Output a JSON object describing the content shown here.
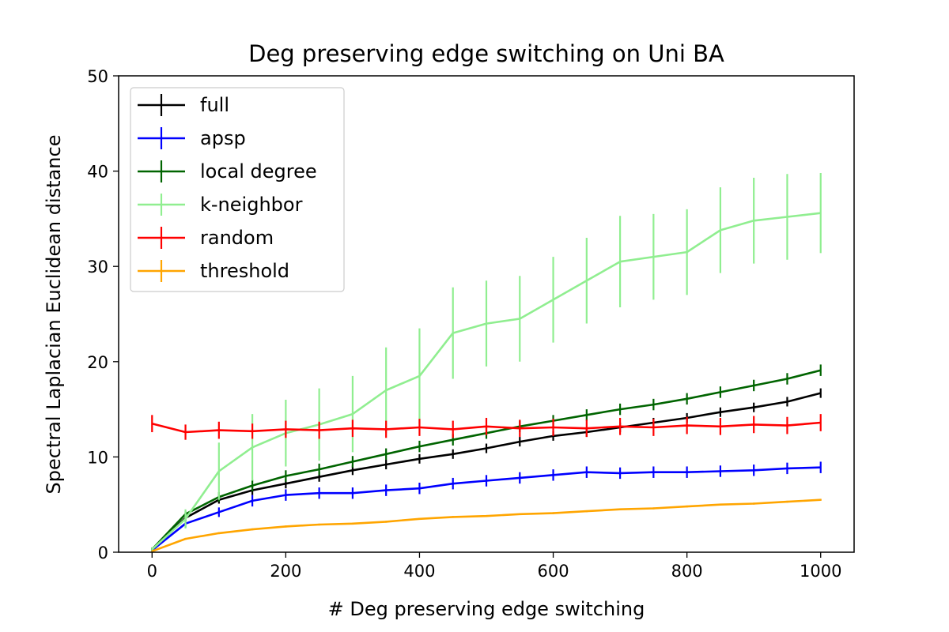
{
  "chart_data": {
    "type": "line",
    "title": "Deg preserving edge switching on Uni BA",
    "xlabel": "# Deg preserving edge switching",
    "ylabel": "Spectral Laplacian Euclidean distance",
    "xlim": [
      -50,
      1050
    ],
    "ylim": [
      0,
      50
    ],
    "xticks": [
      0,
      200,
      400,
      600,
      800,
      1000
    ],
    "yticks": [
      0,
      10,
      20,
      30,
      40,
      50
    ],
    "x": [
      0,
      50,
      100,
      150,
      200,
      250,
      300,
      350,
      400,
      450,
      500,
      550,
      600,
      650,
      700,
      750,
      800,
      850,
      900,
      950,
      1000
    ],
    "legend_position": "upper-left",
    "grid": false,
    "series": [
      {
        "name": "full",
        "color": "#000000",
        "values": [
          0.3,
          3.6,
          5.5,
          6.5,
          7.2,
          7.9,
          8.6,
          9.2,
          9.8,
          10.3,
          10.9,
          11.6,
          12.2,
          12.6,
          13.1,
          13.6,
          14.1,
          14.7,
          15.2,
          15.8,
          16.7
        ],
        "errors": [
          0.2,
          0.3,
          0.4,
          0.5,
          0.5,
          0.5,
          0.5,
          0.5,
          0.5,
          0.5,
          0.5,
          0.5,
          0.5,
          0.5,
          0.5,
          0.5,
          0.5,
          0.5,
          0.5,
          0.5,
          0.5
        ]
      },
      {
        "name": "apsp",
        "color": "#0000ff",
        "values": [
          0.2,
          3.0,
          4.2,
          5.4,
          6.0,
          6.2,
          6.2,
          6.5,
          6.7,
          7.2,
          7.5,
          7.8,
          8.1,
          8.4,
          8.3,
          8.4,
          8.4,
          8.5,
          8.6,
          8.8,
          8.9
        ],
        "errors": [
          0.2,
          0.4,
          0.5,
          0.6,
          0.6,
          0.6,
          0.6,
          0.6,
          0.6,
          0.6,
          0.6,
          0.6,
          0.6,
          0.6,
          0.6,
          0.6,
          0.6,
          0.6,
          0.6,
          0.6,
          0.6
        ]
      },
      {
        "name": "local degree",
        "color": "#006400",
        "values": [
          0.3,
          4.0,
          5.8,
          7.0,
          8.0,
          8.7,
          9.5,
          10.3,
          11.1,
          11.8,
          12.5,
          13.2,
          13.8,
          14.4,
          15.0,
          15.5,
          16.1,
          16.8,
          17.5,
          18.2,
          19.1
        ],
        "errors": [
          0.2,
          0.3,
          0.5,
          0.6,
          0.6,
          0.6,
          0.6,
          0.6,
          0.6,
          0.6,
          0.6,
          0.6,
          0.6,
          0.6,
          0.6,
          0.6,
          0.6,
          0.6,
          0.6,
          0.6,
          0.6
        ]
      },
      {
        "name": "k-neighbor",
        "color": "#90ee90",
        "values": [
          0.3,
          3.5,
          8.5,
          11.0,
          12.5,
          13.4,
          14.5,
          17.0,
          18.5,
          23.0,
          24.0,
          24.5,
          26.5,
          28.5,
          30.5,
          31.0,
          31.5,
          33.8,
          34.8,
          35.2,
          35.6
        ],
        "errors": [
          0.2,
          1.0,
          3.0,
          3.5,
          3.5,
          3.8,
          4.0,
          4.5,
          5.0,
          4.8,
          4.5,
          4.5,
          4.5,
          4.5,
          4.8,
          4.5,
          4.5,
          4.5,
          4.5,
          4.5,
          4.2
        ]
      },
      {
        "name": "random",
        "color": "#ff0000",
        "values": [
          13.5,
          12.6,
          12.8,
          12.7,
          12.9,
          12.8,
          13.0,
          12.9,
          13.1,
          12.9,
          13.2,
          13.0,
          13.1,
          13.0,
          13.2,
          13.1,
          13.3,
          13.2,
          13.4,
          13.3,
          13.6
        ],
        "errors": [
          0.9,
          0.8,
          0.9,
          0.8,
          0.9,
          0.9,
          0.9,
          0.9,
          0.9,
          0.9,
          0.9,
          0.9,
          0.9,
          0.9,
          0.9,
          0.9,
          0.9,
          0.9,
          0.9,
          0.9,
          0.9
        ]
      },
      {
        "name": "threshold",
        "color": "#ffa500",
        "values": [
          0.1,
          1.4,
          2.0,
          2.4,
          2.7,
          2.9,
          3.0,
          3.2,
          3.5,
          3.7,
          3.8,
          4.0,
          4.1,
          4.3,
          4.5,
          4.6,
          4.8,
          5.0,
          5.1,
          5.3,
          5.5
        ],
        "errors": [
          0.05,
          0.1,
          0.1,
          0.1,
          0.1,
          0.1,
          0.1,
          0.1,
          0.1,
          0.1,
          0.1,
          0.1,
          0.1,
          0.1,
          0.1,
          0.1,
          0.1,
          0.1,
          0.1,
          0.1,
          0.1
        ]
      }
    ]
  }
}
